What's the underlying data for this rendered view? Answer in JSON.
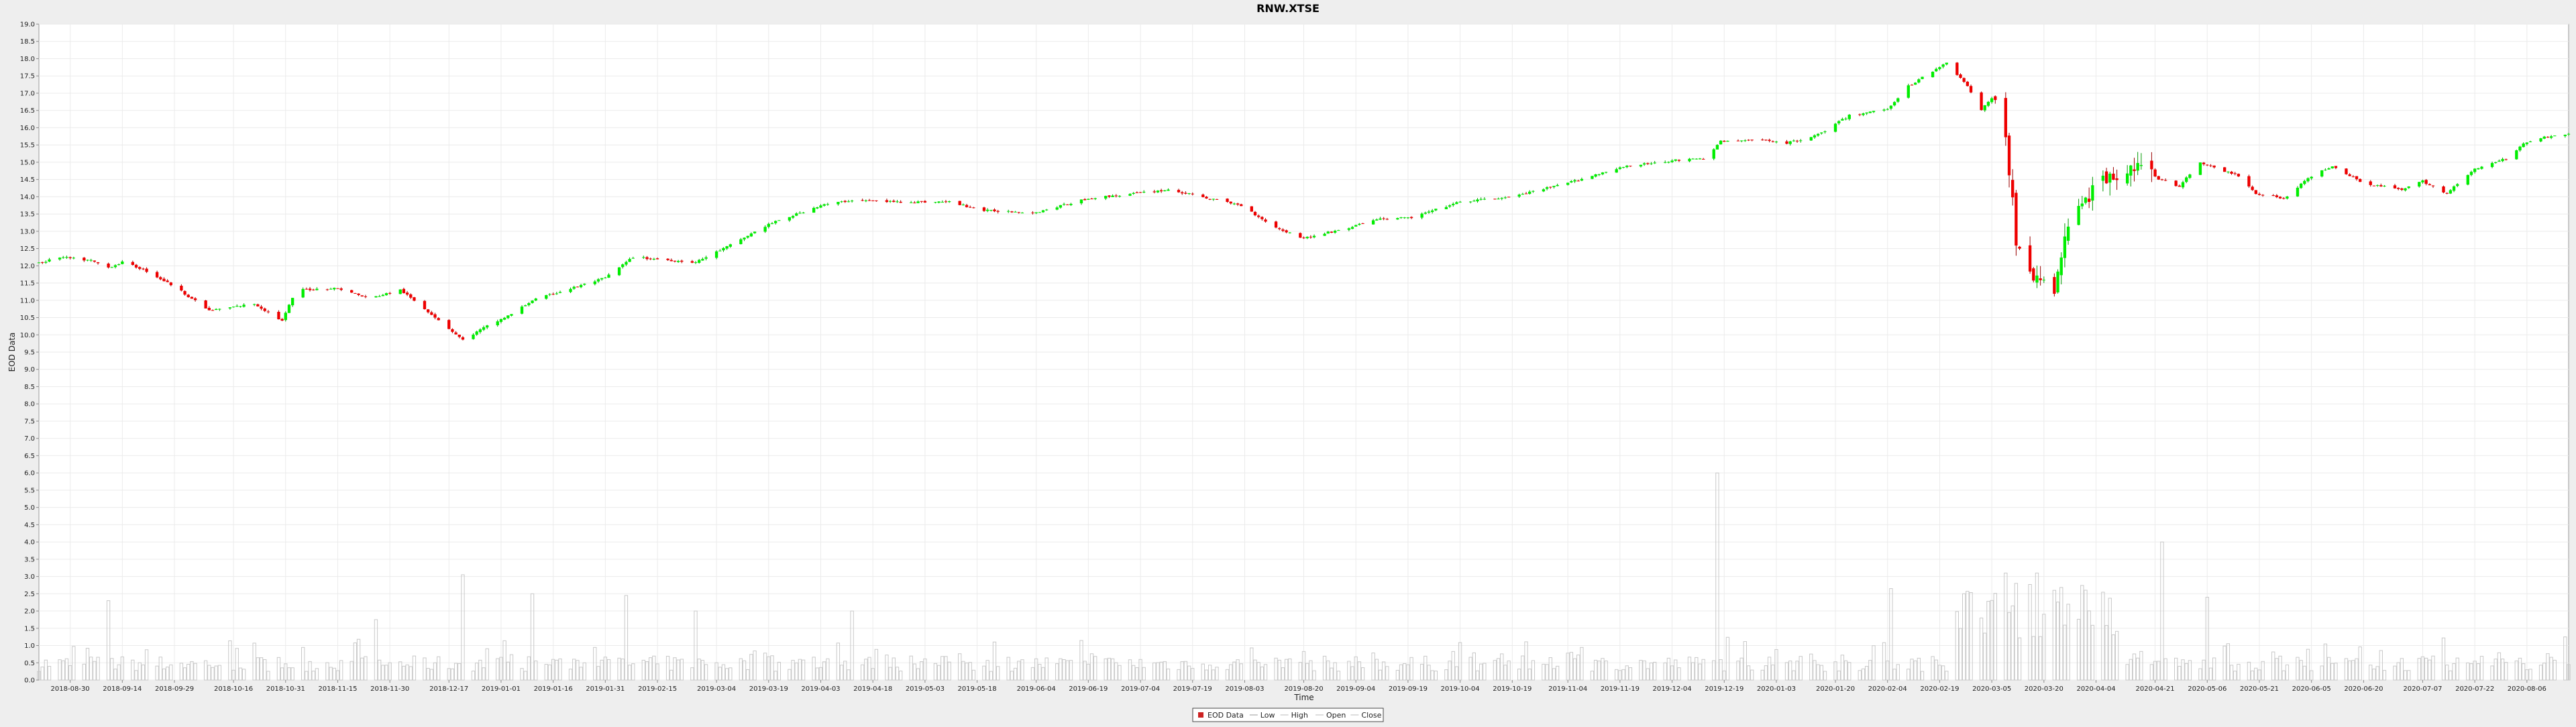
{
  "chart_data": {
    "type": "candlestick",
    "title": "RNW.XTSE",
    "xlabel": "Time",
    "ylabel": "EOD Data",
    "ylim": [
      0,
      19.0
    ],
    "y_ticks": [
      "0.0",
      "0.5",
      "1.0",
      "1.5",
      "2.0",
      "2.5",
      "3.0",
      "3.5",
      "4.0",
      "4.5",
      "5.0",
      "5.5",
      "6.0",
      "6.5",
      "7.0",
      "7.5",
      "8.0",
      "8.5",
      "9.0",
      "9.5",
      "10.0",
      "10.5",
      "11.0",
      "11.5",
      "12.0",
      "12.5",
      "13.0",
      "13.5",
      "14.0",
      "14.5",
      "15.0",
      "15.5",
      "16.0",
      "16.5",
      "17.0",
      "17.5",
      "18.0",
      "18.5",
      "19.0"
    ],
    "x_ticks": [
      "2018-08-30",
      "2018-09-14",
      "2018-09-29",
      "2018-10-16",
      "2018-10-31",
      "2018-11-15",
      "2018-11-30",
      "2018-12-17",
      "2019-01-01",
      "2019-01-16",
      "2019-01-31",
      "2019-02-15",
      "2019-03-04",
      "2019-03-19",
      "2019-04-03",
      "2019-04-18",
      "2019-05-03",
      "2019-05-18",
      "2019-06-04",
      "2019-06-19",
      "2019-07-04",
      "2019-07-19",
      "2019-08-03",
      "2019-08-20",
      "2019-09-04",
      "2019-09-19",
      "2019-10-04",
      "2019-10-19",
      "2019-11-04",
      "2019-11-19",
      "2019-12-04",
      "2019-12-19",
      "2020-01-03",
      "2020-01-20",
      "2020-02-04",
      "2020-02-19",
      "2020-03-05",
      "2020-03-20",
      "2020-04-04",
      "2020-04-21",
      "2020-05-06",
      "2020-05-21",
      "2020-06-05",
      "2020-06-20",
      "2020-07-07",
      "2020-07-22",
      "2020-08-06"
    ],
    "x_range": [
      "2018-08-21",
      "2020-08-18"
    ],
    "close_keyframes": [
      [
        "2018-08-22",
        12.1
      ],
      [
        "2018-08-27",
        12.25
      ],
      [
        "2018-09-05",
        12.15
      ],
      [
        "2018-09-10",
        11.95
      ],
      [
        "2018-09-14",
        12.1
      ],
      [
        "2018-09-20",
        11.9
      ],
      [
        "2018-09-29",
        11.4
      ],
      [
        "2018-10-09",
        10.7
      ],
      [
        "2018-10-22",
        10.9
      ],
      [
        "2018-10-30",
        10.4
      ],
      [
        "2018-11-03",
        11.3
      ],
      [
        "2018-11-15",
        11.35
      ],
      [
        "2018-11-24",
        11.05
      ],
      [
        "2018-12-03",
        11.3
      ],
      [
        "2018-12-12",
        10.6
      ],
      [
        "2018-12-21",
        9.85
      ],
      [
        "2018-12-27",
        10.2
      ],
      [
        "2019-01-04",
        10.6
      ],
      [
        "2019-01-10",
        11.0
      ],
      [
        "2019-01-31",
        11.65
      ],
      [
        "2019-02-08",
        12.25
      ],
      [
        "2019-02-26",
        12.1
      ],
      [
        "2019-03-08",
        12.6
      ],
      [
        "2019-03-19",
        13.2
      ],
      [
        "2019-04-03",
        13.75
      ],
      [
        "2019-04-12",
        13.9
      ],
      [
        "2019-04-25",
        13.85
      ],
      [
        "2019-05-10",
        13.85
      ],
      [
        "2019-05-20",
        13.6
      ],
      [
        "2019-06-04",
        13.55
      ],
      [
        "2019-06-19",
        13.95
      ],
      [
        "2019-07-12",
        14.2
      ],
      [
        "2019-07-24",
        13.95
      ],
      [
        "2019-08-02",
        13.75
      ],
      [
        "2019-08-12",
        13.1
      ],
      [
        "2019-08-20",
        12.8
      ],
      [
        "2019-09-02",
        13.1
      ],
      [
        "2019-09-10",
        13.35
      ],
      [
        "2019-09-20",
        13.4
      ],
      [
        "2019-10-04",
        13.85
      ],
      [
        "2019-10-19",
        14.0
      ],
      [
        "2019-11-04",
        14.4
      ],
      [
        "2019-11-19",
        14.85
      ],
      [
        "2019-12-04",
        15.05
      ],
      [
        "2019-12-13",
        15.1
      ],
      [
        "2019-12-18",
        15.6
      ],
      [
        "2019-12-31",
        15.65
      ],
      [
        "2020-01-06",
        15.55
      ],
      [
        "2020-01-15",
        15.8
      ],
      [
        "2020-01-24",
        16.35
      ],
      [
        "2020-02-04",
        16.55
      ],
      [
        "2020-02-10",
        17.2
      ],
      [
        "2020-02-21",
        17.9
      ],
      [
        "2020-02-27",
        17.2
      ],
      [
        "2020-03-02",
        16.5
      ],
      [
        "2020-03-06",
        17.0
      ],
      [
        "2020-03-09",
        15.7
      ],
      [
        "2020-03-12",
        12.8
      ],
      [
        "2020-03-18",
        11.5
      ],
      [
        "2020-03-23",
        11.3
      ],
      [
        "2020-03-27",
        13.2
      ],
      [
        "2020-04-03",
        14.2
      ],
      [
        "2020-04-14",
        14.95
      ],
      [
        "2020-04-20",
        14.6
      ],
      [
        "2020-04-28",
        14.3
      ],
      [
        "2020-05-04",
        15.0
      ],
      [
        "2020-05-15",
        14.6
      ],
      [
        "2020-05-20",
        14.1
      ],
      [
        "2020-05-28",
        13.95
      ],
      [
        "2020-06-05",
        14.6
      ],
      [
        "2020-06-11",
        14.9
      ],
      [
        "2020-06-20",
        14.4
      ],
      [
        "2020-07-01",
        14.2
      ],
      [
        "2020-07-07",
        14.45
      ],
      [
        "2020-07-14",
        14.1
      ],
      [
        "2020-07-22",
        14.8
      ],
      [
        "2020-07-31",
        15.1
      ],
      [
        "2020-08-06",
        15.6
      ],
      [
        "2020-08-14",
        15.8
      ]
    ],
    "volume_keyframes": [
      [
        "2018-09-10",
        2.3
      ],
      [
        "2018-11-26",
        1.75
      ],
      [
        "2018-12-21",
        3.05
      ],
      [
        "2019-01-10",
        2.5
      ],
      [
        "2019-02-06",
        2.45
      ],
      [
        "2019-02-26",
        2.0
      ],
      [
        "2019-04-12",
        2.0
      ],
      [
        "2019-12-17",
        6.0
      ],
      [
        "2020-02-05",
        2.65
      ],
      [
        "2020-02-26",
        2.5
      ],
      [
        "2020-03-09",
        3.1
      ],
      [
        "2020-03-12",
        2.8
      ],
      [
        "2020-03-18",
        3.1
      ],
      [
        "2020-03-23",
        2.6
      ],
      [
        "2020-04-23",
        4.0
      ],
      [
        "2020-05-06",
        2.4
      ],
      [
        "2020-08-17",
        1.25
      ]
    ],
    "legend": [
      "EOD Data",
      "Low",
      "High",
      "Open",
      "Close"
    ],
    "legend_position": "bottom-center",
    "grid": true,
    "colors": {
      "up": "#00ee00",
      "down": "#ee0000",
      "wick_up": "#009900",
      "wick_down": "#990000",
      "volume": "#c8c8c8",
      "grid": "#ebebeb",
      "plot_bg": "#ffffff",
      "page_bg": "#eeeeee",
      "axis": "#888888",
      "text": "#222222"
    }
  }
}
